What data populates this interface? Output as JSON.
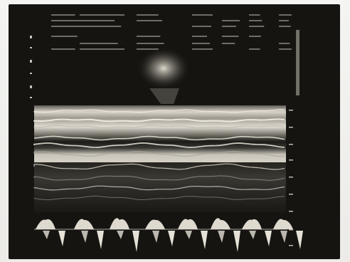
{
  "image": {
    "subject": "ultrasound-monitor-photo",
    "colors": {
      "paper": "#f2f1ee",
      "screen": "#151411",
      "echo": "#d9d5cc",
      "header_text": "#b8b4aa"
    }
  },
  "header": {
    "rows": [
      [
        "",
        "",
        "",
        "",
        "",
        ""
      ],
      [
        "",
        "",
        "",
        "",
        "",
        ""
      ],
      [
        "",
        "",
        "",
        "",
        "",
        ""
      ]
    ]
  },
  "right_scale": {
    "labels": [
      "",
      "",
      "",
      "",
      "",
      "",
      "",
      ""
    ]
  }
}
